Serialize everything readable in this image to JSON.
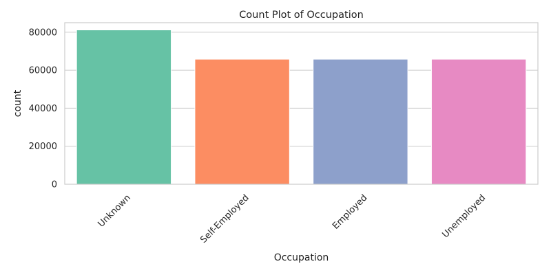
{
  "chart_data": {
    "type": "bar",
    "title": "Count Plot of Occupation",
    "xlabel": "Occupation",
    "ylabel": "count",
    "categories": [
      "Unknown",
      "Self-Employed",
      "Employed",
      "Unemployed"
    ],
    "values": [
      81200,
      65800,
      65800,
      65800
    ],
    "colors": [
      "#66c2a5",
      "#fc8d62",
      "#8da0cb",
      "#e78ac3"
    ],
    "ylim": [
      0,
      85000
    ],
    "yticks": [
      0,
      20000,
      40000,
      60000,
      80000
    ],
    "grid": true,
    "grid_axis": "y",
    "legend": "none",
    "xtick_rotation_deg": 45
  }
}
